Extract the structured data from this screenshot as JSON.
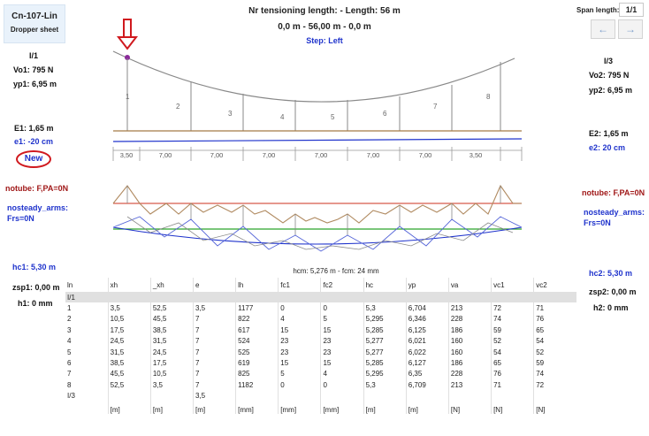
{
  "title_card": {
    "name": "Cn-107-Lin",
    "subtitle": "Dropper sheet"
  },
  "header": {
    "line1": "Nr tensioning length:  - Length: 56 m",
    "line2": "0,0 m - 56,00 m - 0,0 m",
    "step": "Step: Left"
  },
  "span_control": {
    "label": "Span length:",
    "value": "1/1",
    "prev_icon": "←",
    "next_icon": "→"
  },
  "left_panel": {
    "id": "I/1",
    "vo": "Vo1: 795 N",
    "yp": "yp1: 6,95 m",
    "e": "E1: 1,65 m",
    "ecc": "e1: -20 cm",
    "new_button": "New",
    "notube": "notube: F,PA=0N",
    "nosteady": "nosteady_arms:",
    "frs": "Frs=0N",
    "hc": "hc1: 5,30 m",
    "zsp": "zsp1: 0,00 m",
    "h": "h1: 0 mm"
  },
  "right_panel": {
    "id": "I/3",
    "vo": "Vo2: 795 N",
    "yp": "yp2: 6,95 m",
    "e": "E2: 1,65 m",
    "ecc": "e2: 20 cm",
    "notube": "notube: F,PA=0N",
    "nosteady": "nosteady_arms:",
    "frs": "Frs=0N",
    "hc": "hc2: 5,30 m",
    "zsp": "zsp2: 0,00 m",
    "h": "h2: 0 mm"
  },
  "diagram": {
    "dropper_numbers": [
      "1",
      "2",
      "3",
      "4",
      "5",
      "6",
      "7",
      "8"
    ],
    "span_dims": [
      "3,50",
      "7,00",
      "7,00",
      "7,00",
      "7,00",
      "7,00",
      "7,00",
      "3,50"
    ],
    "arrow_icon": "down-arrow-icon"
  },
  "table": {
    "summary": "hcm: 5,276 m - fcm: 24 mm",
    "columns": [
      "ln",
      "xh",
      "_xh",
      "e",
      "lh",
      "fc1",
      "fc2",
      "hc",
      "yp",
      "va",
      "vc1",
      "vc2"
    ],
    "rows": [
      [
        "I/1",
        "",
        "",
        "",
        "",
        "",
        "",
        "",
        "",
        "",
        "",
        ""
      ],
      [
        "1",
        "3,5",
        "52,5",
        "3,5",
        "1177",
        "0",
        "0",
        "5,3",
        "6,704",
        "213",
        "72",
        "71"
      ],
      [
        "2",
        "10,5",
        "45,5",
        "7",
        "822",
        "4",
        "5",
        "5,295",
        "6,346",
        "228",
        "74",
        "76"
      ],
      [
        "3",
        "17,5",
        "38,5",
        "7",
        "617",
        "15",
        "15",
        "5,285",
        "6,125",
        "186",
        "59",
        "65"
      ],
      [
        "4",
        "24,5",
        "31,5",
        "7",
        "524",
        "23",
        "23",
        "5,277",
        "6,021",
        "160",
        "52",
        "54"
      ],
      [
        "5",
        "31,5",
        "24,5",
        "7",
        "525",
        "23",
        "23",
        "5,277",
        "6,022",
        "160",
        "54",
        "52"
      ],
      [
        "6",
        "38,5",
        "17,5",
        "7",
        "619",
        "15",
        "15",
        "5,285",
        "6,127",
        "186",
        "65",
        "59"
      ],
      [
        "7",
        "45,5",
        "10,5",
        "7",
        "825",
        "5",
        "4",
        "5,295",
        "6,35",
        "228",
        "76",
        "74"
      ],
      [
        "8",
        "52,5",
        "3,5",
        "7",
        "1182",
        "0",
        "0",
        "5,3",
        "6,709",
        "213",
        "71",
        "72"
      ],
      [
        "I/3",
        "",
        "",
        "3,5",
        "",
        "",
        "",
        "",
        "",
        "",
        "",
        ""
      ]
    ],
    "units": [
      "",
      "[m]",
      "[m]",
      "[m]",
      "[mm]",
      "[mm]",
      "[mm]",
      "[m]",
      "[m]",
      "[N]",
      "[N]",
      "[N]"
    ]
  }
}
